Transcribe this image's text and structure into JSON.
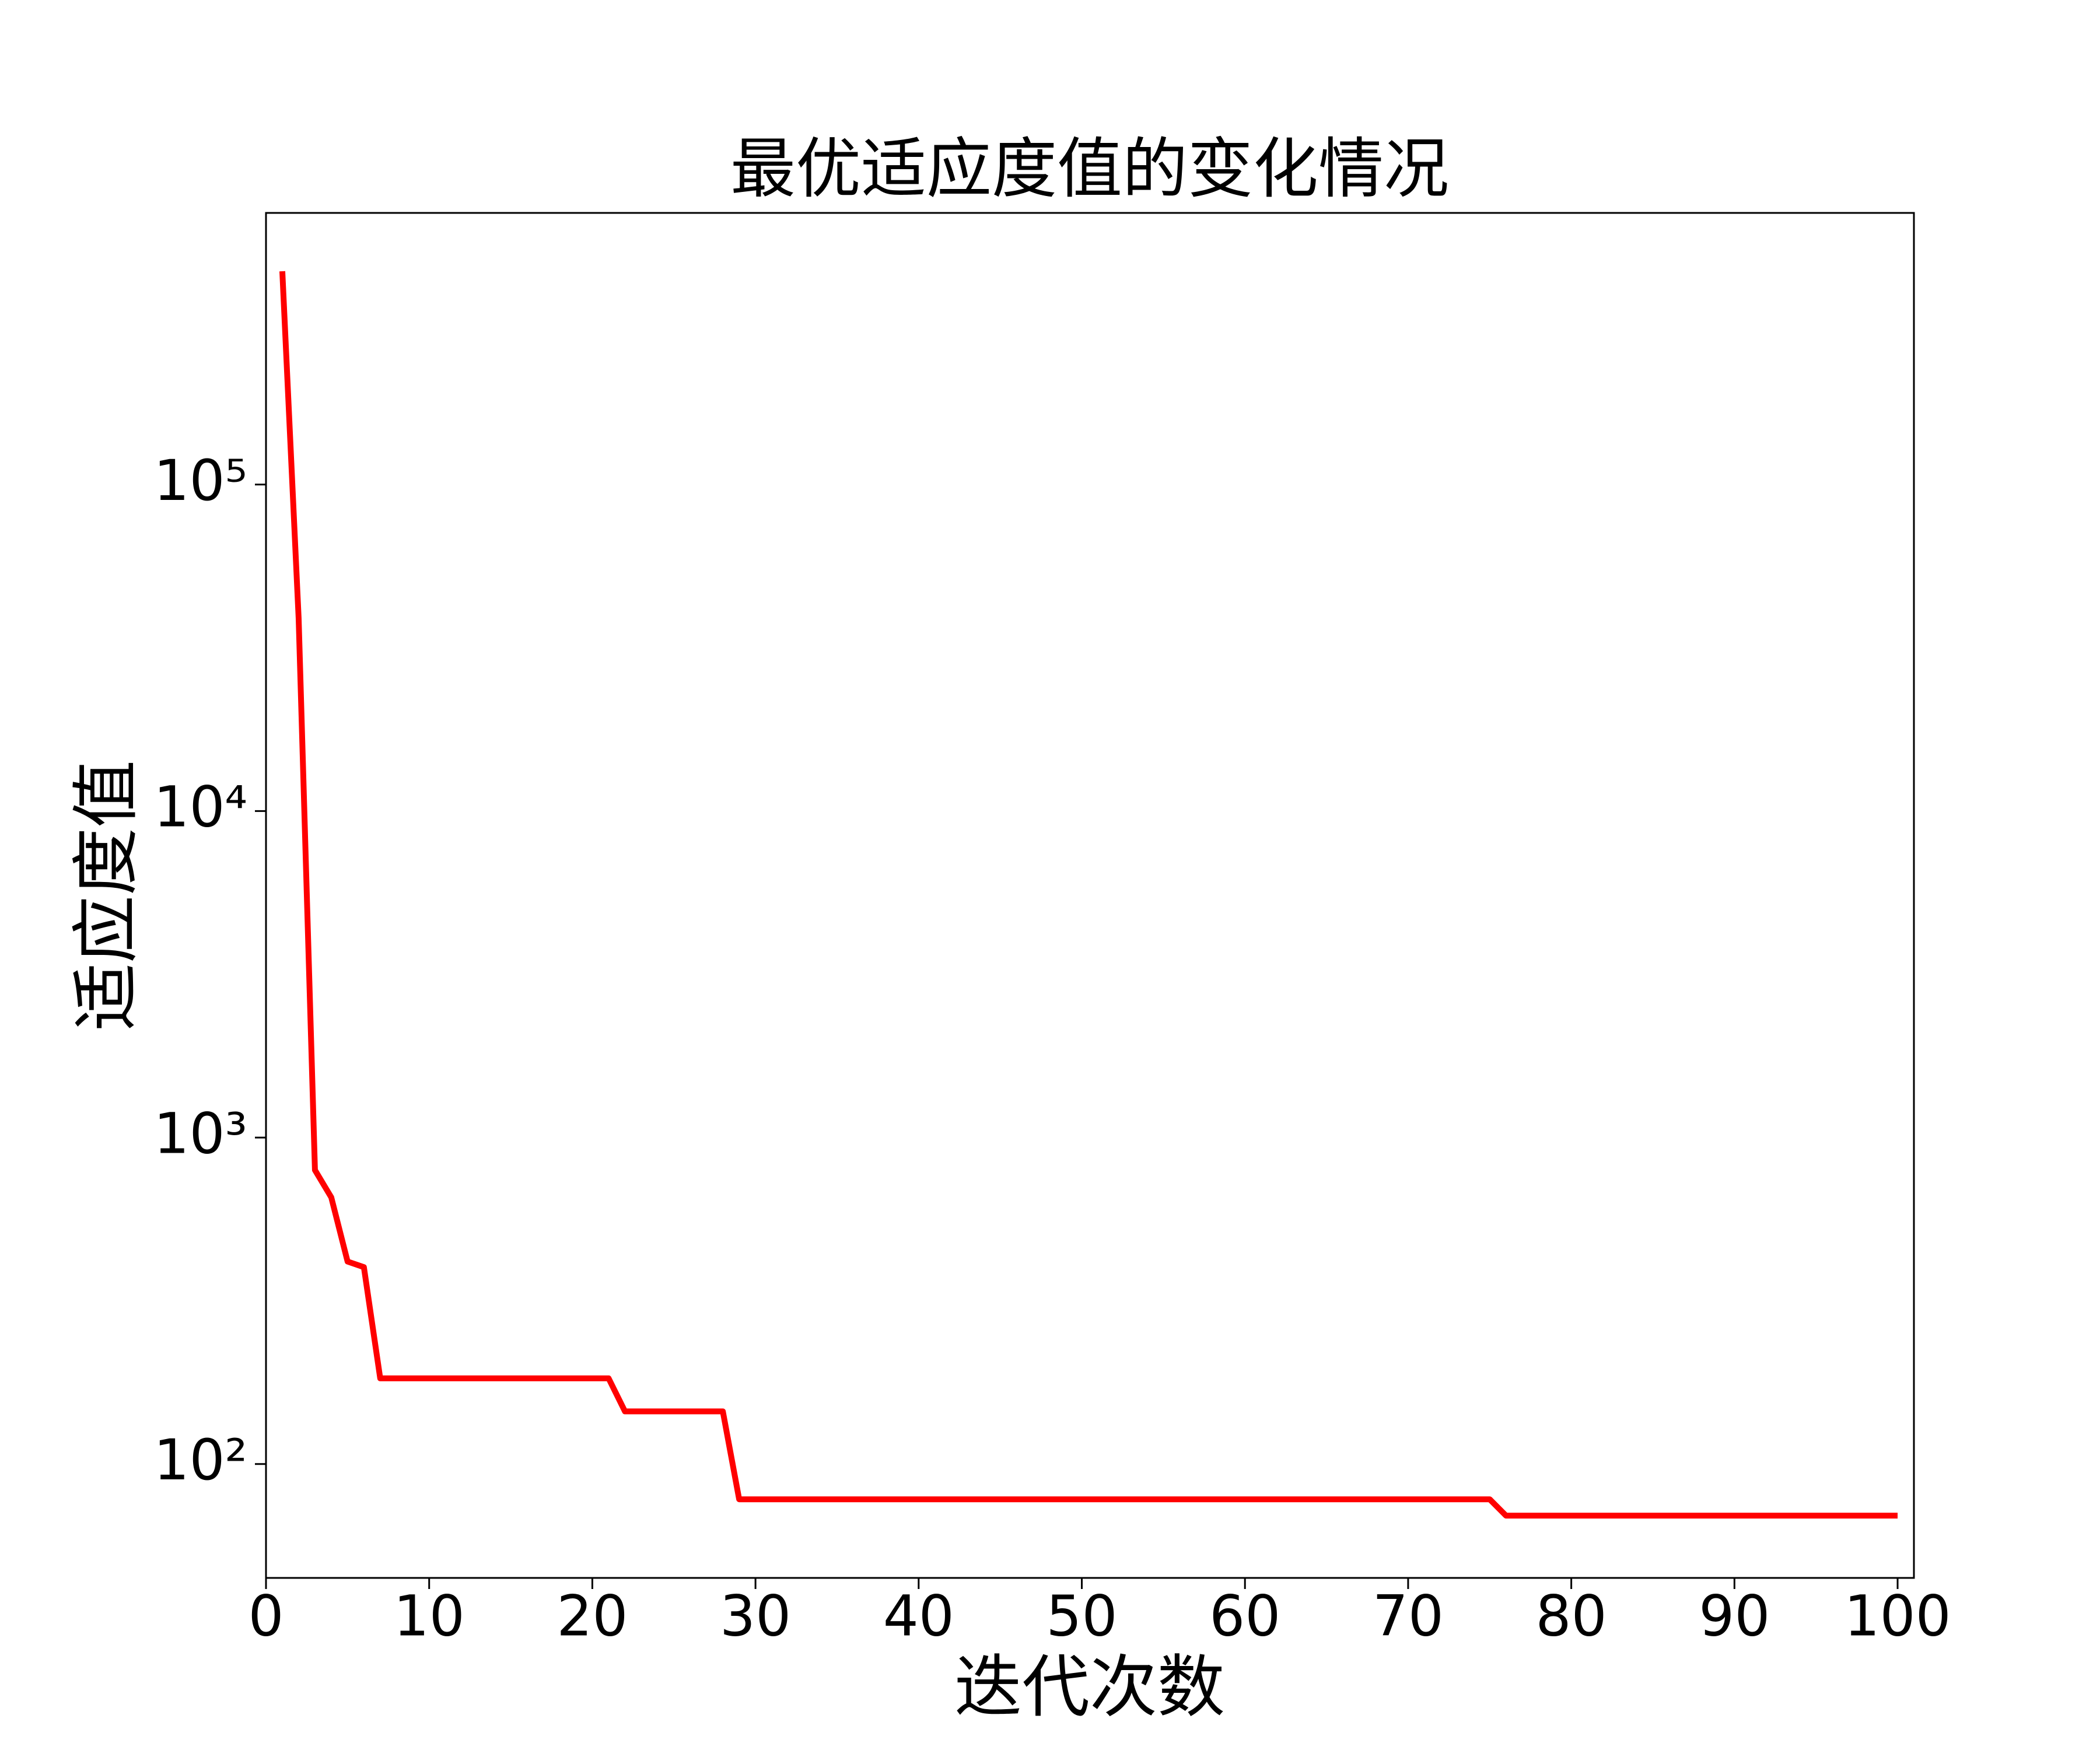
{
  "chart_data": {
    "type": "line",
    "title": "最优适应度值的变化情况",
    "x_label": "迭代次数",
    "y_label": "适应度值",
    "x": [
      1,
      2,
      3,
      4,
      5,
      6,
      7,
      8,
      9,
      10,
      11,
      12,
      13,
      14,
      15,
      16,
      17,
      18,
      19,
      20,
      21,
      22,
      23,
      24,
      25,
      26,
      27,
      28,
      29,
      30,
      31,
      32,
      33,
      34,
      35,
      36,
      37,
      38,
      39,
      40,
      41,
      42,
      43,
      44,
      45,
      46,
      47,
      48,
      49,
      50,
      51,
      52,
      53,
      54,
      55,
      56,
      57,
      58,
      59,
      60,
      61,
      62,
      63,
      64,
      65,
      66,
      67,
      68,
      69,
      70,
      71,
      72,
      73,
      74,
      75,
      76,
      77,
      78,
      79,
      80,
      81,
      82,
      83,
      84,
      85,
      86,
      87,
      88,
      89,
      90,
      91,
      92,
      93,
      94,
      95,
      96,
      97,
      98,
      99,
      100
    ],
    "series": [
      {
        "color": "#ff0000",
        "values": [
          450000,
          39000,
          795,
          656,
          417,
          401,
          183,
          183,
          183,
          183,
          183,
          183,
          183,
          183,
          183,
          183,
          183,
          183,
          183,
          183,
          183,
          145,
          145,
          145,
          145,
          145,
          145,
          145,
          78,
          78,
          78,
          78,
          78,
          78,
          78,
          78,
          78,
          78,
          78,
          78,
          78,
          78,
          78,
          78,
          78,
          78,
          78,
          78,
          78,
          78,
          78,
          78,
          78,
          78,
          78,
          78,
          78,
          78,
          78,
          78,
          78,
          78,
          78,
          78,
          78,
          78,
          78,
          78,
          78,
          78,
          78,
          78,
          78,
          78,
          78,
          69.5,
          69.5,
          69.5,
          69.5,
          69.5,
          69.5,
          69.5,
          69.5,
          69.5,
          69.5,
          69.5,
          69.5,
          69.5,
          69.5,
          69.5,
          69.5,
          69.5,
          69.5,
          69.5,
          69.5,
          69.5,
          69.5,
          69.5,
          69.5,
          69.5
        ]
      }
    ],
    "xlim": [
      0,
      101
    ],
    "xticks": [
      0,
      10,
      20,
      30,
      40,
      50,
      60,
      70,
      80,
      90,
      100
    ],
    "ylim": [
      44.8,
      679000
    ],
    "yticks": [
      {
        "value": 100,
        "label": "10²"
      },
      {
        "value": 1000,
        "label": "10³"
      },
      {
        "value": 10000,
        "label": "10⁴"
      },
      {
        "value": 100000,
        "label": "10⁵"
      }
    ],
    "y_log": true,
    "grid": false
  }
}
